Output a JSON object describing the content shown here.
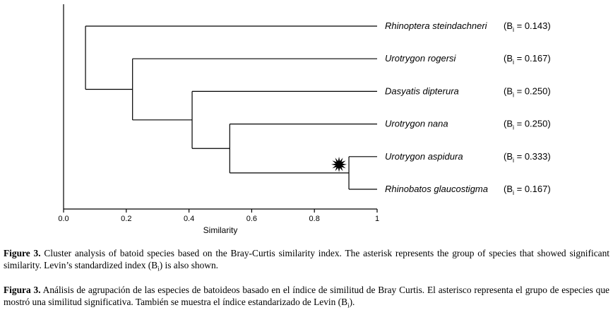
{
  "chart_data": {
    "type": "dendrogram",
    "xlabel": "Similarity",
    "xlim": [
      0,
      1
    ],
    "x_ticks": [
      "0.0",
      "0.2",
      "0.4",
      "0.6",
      "0.8",
      "1"
    ],
    "leaves": [
      {
        "name": "Rhinoptera steindachneri",
        "bi_prefix": "(B",
        "bi_sub": "i",
        "bi_value": " = 0.143)"
      },
      {
        "name": "Urotrygon rogersi",
        "bi_prefix": "(B",
        "bi_sub": "i",
        "bi_value": " = 0.167)"
      },
      {
        "name": "Dasyatis dipterura",
        "bi_prefix": "(B",
        "bi_sub": "i",
        "bi_value": " = 0.250)"
      },
      {
        "name": "Urotrygon nana",
        "bi_prefix": "(B",
        "bi_sub": "i",
        "bi_value": " = 0.250)"
      },
      {
        "name": "Urotrygon aspidura",
        "bi_prefix": "(B",
        "bi_sub": "i",
        "bi_value": " = 0.333)"
      },
      {
        "name": "Rhinobatos glaucostigma",
        "bi_prefix": "(B",
        "bi_sub": "i",
        "bi_value": " = 0.167)"
      }
    ],
    "merges": [
      {
        "children": [
          "leaf:4",
          "leaf:5"
        ],
        "similarity": 0.91,
        "significant": true
      },
      {
        "children": [
          "leaf:3",
          "node:0"
        ],
        "similarity": 0.53
      },
      {
        "children": [
          "leaf:2",
          "node:1"
        ],
        "similarity": 0.41
      },
      {
        "children": [
          "leaf:1",
          "node:2"
        ],
        "similarity": 0.22
      },
      {
        "children": [
          "leaf:0",
          "node:3"
        ],
        "similarity": 0.07
      }
    ],
    "marker": "asterisk"
  },
  "caption": {
    "en_label": "Figure 3.",
    "en_text_1": " Cluster analysis of batoid species based on the Bray-Curtis similarity index. The asterisk represents the group of species that showed significant similarity. Levin’s standardized index (B",
    "en_sub": "i",
    "en_text_2": ") is also shown.",
    "es_label": "Figura 3.",
    "es_text_1": " Análisis de agrupación de las especies de batoideos basado en el índice de similitud de Bray Curtis. El asterisco representa el grupo de especies que mostró una similitud significativa. También se muestra el índice estandarizado de Levin (B",
    "es_sub": "i",
    "es_text_2": ")."
  }
}
